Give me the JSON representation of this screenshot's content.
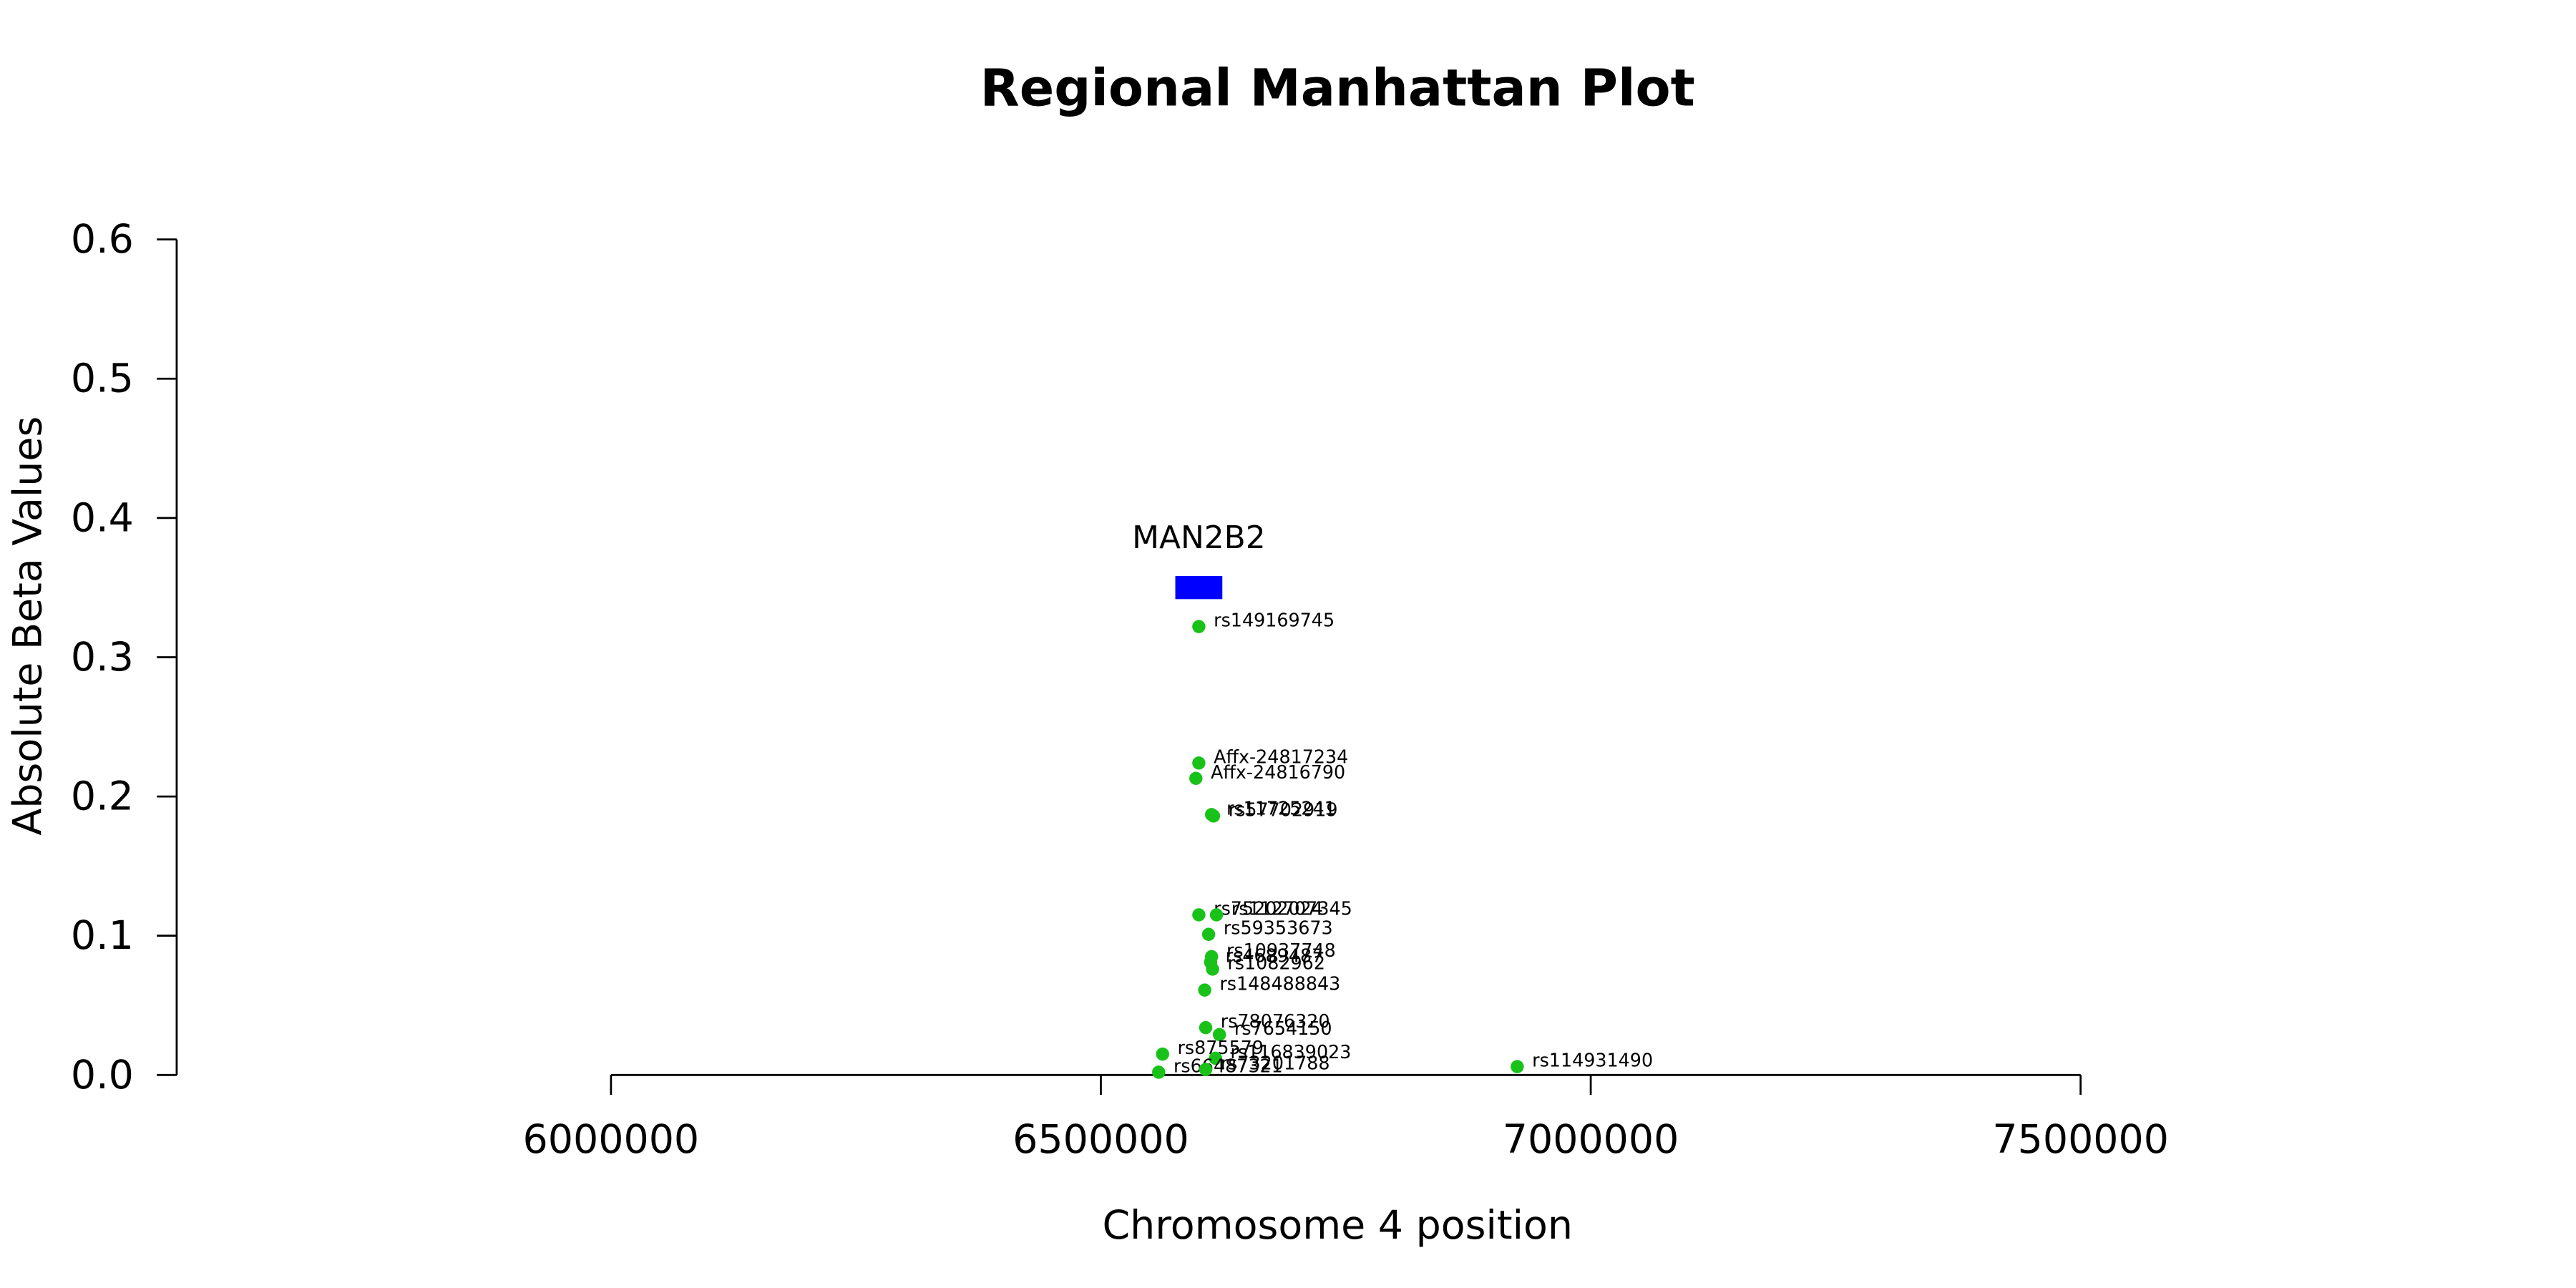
{
  "chart_data": {
    "type": "scatter",
    "title": "Regional Manhattan Plot",
    "xlabel": "Chromosome 4 position",
    "ylabel": "Absolute Beta Values",
    "xlim": [
      6000000,
      7500000
    ],
    "ylim": [
      0,
      0.6
    ],
    "x_ticks": [
      6000000,
      6500000,
      7000000,
      7500000
    ],
    "y_ticks": [
      0.0,
      0.1,
      0.2,
      0.3,
      0.4,
      0.5,
      0.6
    ],
    "x_tick_labels": [
      "6000000",
      "6500000",
      "7000000",
      "7500000"
    ],
    "y_tick_labels": [
      "0.0",
      "0.1",
      "0.2",
      "0.3",
      "0.4",
      "0.5",
      "0.6"
    ],
    "point_color": "#19c219",
    "gene_color": "#0000ff",
    "genes": [
      {
        "name": "MAN2B2",
        "start": 6576000,
        "end": 6624000,
        "y": 0.35
      }
    ],
    "points": [
      {
        "label": "rs149169745",
        "x": 6600000,
        "y": 0.322
      },
      {
        "label": "Affx-24817234",
        "x": 6600000,
        "y": 0.224
      },
      {
        "label": "Affx-24816790",
        "x": 6597000,
        "y": 0.213
      },
      {
        "label": "rs11725241",
        "x": 6613000,
        "y": 0.187
      },
      {
        "label": "rs57702919",
        "x": 6615000,
        "y": 0.186
      },
      {
        "label": "rs75202024",
        "x": 6600000,
        "y": 0.115
      },
      {
        "label": "rs112707345",
        "x": 6618000,
        "y": 0.115
      },
      {
        "label": "rs59353673",
        "x": 6610000,
        "y": 0.101
      },
      {
        "label": "rs10937748",
        "x": 6613000,
        "y": 0.085
      },
      {
        "label": "rs4689487",
        "x": 6612000,
        "y": 0.081
      },
      {
        "label": "rs1082962",
        "x": 6614000,
        "y": 0.076
      },
      {
        "label": "rs148488843",
        "x": 6606000,
        "y": 0.061
      },
      {
        "label": "rs78076320",
        "x": 6607000,
        "y": 0.034
      },
      {
        "label": "rs7654150",
        "x": 6621000,
        "y": 0.029
      },
      {
        "label": "rs875579",
        "x": 6563000,
        "y": 0.015
      },
      {
        "label": "rs116839023",
        "x": 6617000,
        "y": 0.012
      },
      {
        "label": "rs66487321",
        "x": 6559000,
        "y": 0.002
      },
      {
        "label": "rs73201788",
        "x": 6607000,
        "y": 0.004
      },
      {
        "label": "rs114931490",
        "x": 6925000,
        "y": 0.006
      }
    ]
  }
}
